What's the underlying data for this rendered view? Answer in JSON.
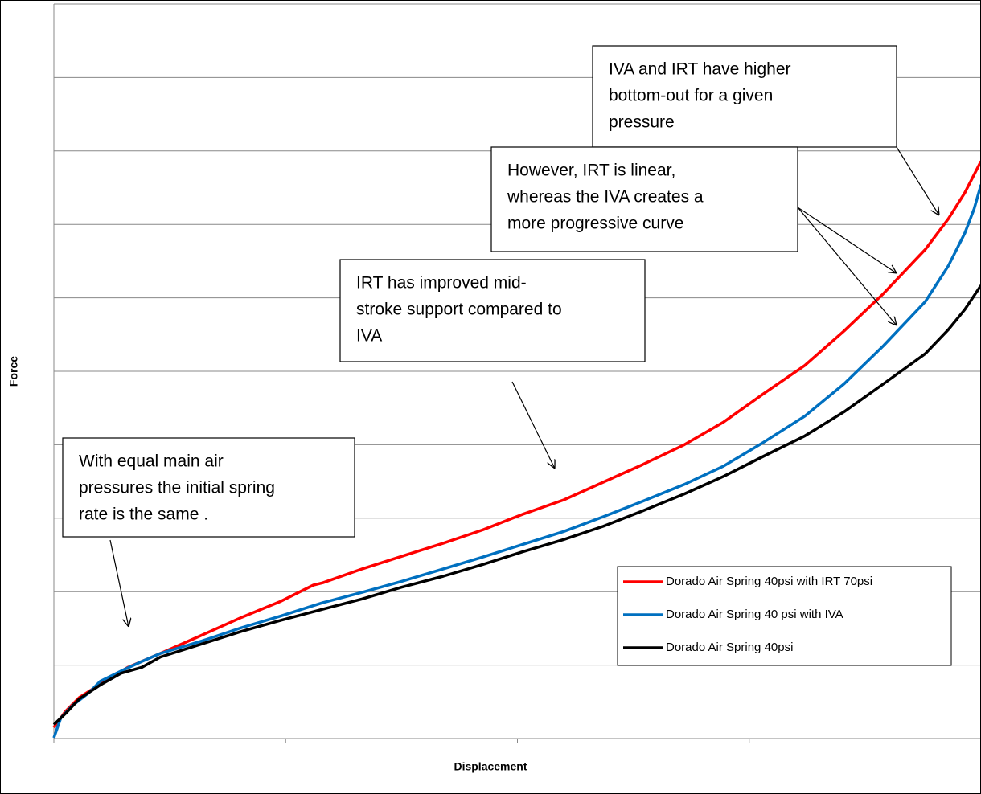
{
  "chart_data": {
    "type": "line",
    "x_label": "Displacement",
    "y_label": "Force",
    "xlim": [
      0,
      4
    ],
    "xticks": [
      0,
      1,
      2,
      3,
      4
    ],
    "ylim": [
      0,
      10
    ],
    "yticks": [
      0,
      1,
      2,
      3,
      4,
      5,
      6,
      7,
      8,
      9,
      10
    ],
    "grid": true,
    "legend": "lower right",
    "series": [
      {
        "name": "Dorado Air Spring 40psi with IRT 70psi",
        "color": "#ff0000",
        "x": [
          0,
          0.05,
          0.11,
          0.22,
          0.32,
          0.46,
          0.64,
          0.81,
          0.98,
          1.12,
          1.16,
          1.33,
          1.5,
          1.68,
          1.85,
          2.02,
          2.2,
          2.37,
          2.54,
          2.72,
          2.89,
          3.06,
          3.24,
          3.41,
          3.58,
          3.76,
          3.86,
          3.93,
          4.0
        ],
        "values": [
          0.15,
          0.37,
          0.56,
          0.78,
          0.97,
          1.16,
          1.41,
          1.65,
          1.87,
          2.09,
          2.12,
          2.31,
          2.48,
          2.66,
          2.84,
          3.05,
          3.25,
          3.49,
          3.73,
          4.0,
          4.31,
          4.69,
          5.08,
          5.55,
          6.06,
          6.66,
          7.08,
          7.43,
          7.86
        ]
      },
      {
        "name": "Dorado Air Spring 40 psi with IVA",
        "color": "#0070c0",
        "x": [
          0,
          0.03,
          0.08,
          0.15,
          0.2,
          0.29,
          0.38,
          0.46,
          0.64,
          0.81,
          0.98,
          1.16,
          1.33,
          1.5,
          1.68,
          1.85,
          2.02,
          2.2,
          2.37,
          2.54,
          2.72,
          2.89,
          3.06,
          3.24,
          3.41,
          3.58,
          3.76,
          3.86,
          3.93,
          3.97,
          4.0
        ],
        "values": [
          0.01,
          0.28,
          0.45,
          0.62,
          0.78,
          0.92,
          1.05,
          1.16,
          1.33,
          1.51,
          1.67,
          1.85,
          1.99,
          2.14,
          2.31,
          2.47,
          2.64,
          2.82,
          3.02,
          3.23,
          3.46,
          3.71,
          4.03,
          4.39,
          4.83,
          5.35,
          5.95,
          6.44,
          6.88,
          7.21,
          7.54
        ]
      },
      {
        "name": "Dorado Air Spring 40psi",
        "color": "#000000",
        "x": [
          0,
          0.05,
          0.11,
          0.2,
          0.29,
          0.38,
          0.46,
          0.64,
          0.81,
          0.98,
          1.16,
          1.33,
          1.5,
          1.68,
          1.85,
          2.02,
          2.2,
          2.37,
          2.54,
          2.72,
          2.89,
          3.06,
          3.24,
          3.41,
          3.58,
          3.76,
          3.86,
          3.93,
          4.0
        ],
        "values": [
          0.19,
          0.34,
          0.54,
          0.73,
          0.89,
          0.97,
          1.11,
          1.29,
          1.46,
          1.61,
          1.76,
          1.9,
          2.06,
          2.21,
          2.37,
          2.54,
          2.71,
          2.89,
          3.1,
          3.33,
          3.57,
          3.84,
          4.12,
          4.45,
          4.83,
          5.24,
          5.57,
          5.84,
          6.17
        ]
      }
    ],
    "annotations": [
      {
        "lines": [
          "IVA and IRT have higher",
          "bottom-out for a given",
          "pressure"
        ]
      },
      {
        "lines": [
          "However, IRT is linear,",
          "whereas the IVA creates a",
          "more progressive curve"
        ]
      },
      {
        "lines": [
          "IRT has improved mid-",
          "stroke support compared to",
          "IVA"
        ]
      },
      {
        "lines": [
          "With equal  main air",
          "pressures the initial spring",
          "rate is the same ."
        ]
      }
    ]
  }
}
